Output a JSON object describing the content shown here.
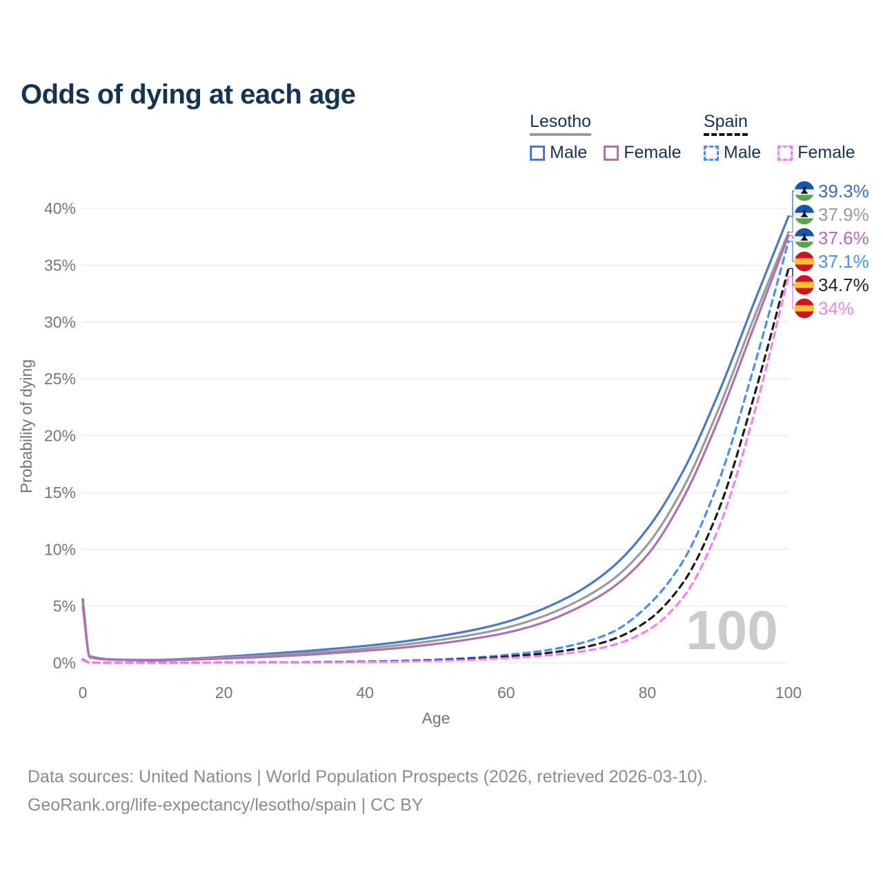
{
  "title": "Odds of dying at each age",
  "watermark": "100",
  "footer": {
    "line1": "Data sources: United Nations | World Population Prospects (2026, retrieved 2026-03-10).",
    "line2": "GeoRank.org/life-expectancy/lesotho/spain | CC BY"
  },
  "legend": {
    "groups": [
      {
        "name": "Lesotho",
        "line_style": "solid",
        "underline_color": "#9a9a9a",
        "items": [
          {
            "label": "Male",
            "color": "#4878c8"
          },
          {
            "label": "Female",
            "color": "#b06fb0"
          }
        ]
      },
      {
        "name": "Spain",
        "line_style": "dashed",
        "underline_color": "#141414",
        "items": [
          {
            "label": "Male",
            "color": "#4a8ff0"
          },
          {
            "label": "Female",
            "color": "#fb7ef5"
          }
        ]
      }
    ]
  },
  "chart_data": {
    "type": "line",
    "title": "Odds of dying at each age",
    "xlabel": "Age",
    "ylabel": "Probability of dying",
    "xlim": [
      0,
      100
    ],
    "ylim": [
      0,
      40
    ],
    "x_ticks": [
      0,
      20,
      40,
      60,
      80,
      100
    ],
    "y_ticks": [
      0,
      5,
      10,
      15,
      20,
      25,
      30,
      35,
      40
    ],
    "y_tick_suffix": "%",
    "grid": "horizontal",
    "legend_position": "top-right",
    "annotation": "100",
    "x": [
      0,
      1,
      5,
      10,
      15,
      20,
      25,
      30,
      35,
      40,
      45,
      50,
      55,
      60,
      65,
      70,
      75,
      80,
      85,
      90,
      95,
      100
    ],
    "series": [
      {
        "name": "Lesotho Male",
        "country": "Lesotho",
        "sex": "Male",
        "flag": "lesotho",
        "color": "#4878c8",
        "label_color": "#3e6ab8",
        "dashed": false,
        "end_label": "39.3%",
        "values": [
          5.6,
          0.6,
          0.3,
          0.27,
          0.37,
          0.55,
          0.75,
          0.97,
          1.22,
          1.5,
          1.85,
          2.3,
          2.85,
          3.6,
          4.7,
          6.2,
          8.4,
          11.8,
          16.8,
          23.6,
          31.5,
          39.3
        ]
      },
      {
        "name": "Lesotho Both sexes",
        "country": "Lesotho",
        "sex": "Both",
        "flag": "lesotho",
        "color": "#9a9a9a",
        "label_color": "#9a9a9a",
        "dashed": false,
        "end_label": "37.9%",
        "values": [
          5.3,
          0.55,
          0.28,
          0.24,
          0.32,
          0.46,
          0.62,
          0.8,
          1.0,
          1.27,
          1.58,
          1.97,
          2.45,
          3.1,
          4.05,
          5.4,
          7.3,
          10.4,
          15.3,
          22.2,
          30.2,
          37.9
        ]
      },
      {
        "name": "Lesotho Female",
        "country": "Lesotho",
        "sex": "Female",
        "flag": "lesotho",
        "color": "#b06fb0",
        "label_color": "#b569ba",
        "dashed": false,
        "end_label": "37.6%",
        "values": [
          5.0,
          0.5,
          0.26,
          0.21,
          0.28,
          0.38,
          0.5,
          0.65,
          0.84,
          1.07,
          1.33,
          1.67,
          2.1,
          2.65,
          3.5,
          4.8,
          6.6,
          9.5,
          14.4,
          21.3,
          29.4,
          37.6
        ]
      },
      {
        "name": "Spain Male",
        "country": "Spain",
        "sex": "Male",
        "flag": "spain",
        "color": "#4a8ff0",
        "label_color": "#4a8ff0",
        "dashed": true,
        "end_label": "37.1%",
        "values": [
          0.3,
          0.03,
          0.01,
          0.01,
          0.02,
          0.04,
          0.05,
          0.06,
          0.09,
          0.13,
          0.19,
          0.29,
          0.45,
          0.7,
          1.05,
          1.65,
          2.7,
          5.0,
          8.9,
          15.8,
          25.8,
          37.1
        ]
      },
      {
        "name": "Spain Both sexes",
        "country": "Spain",
        "sex": "Both",
        "flag": "spain",
        "color": "#1a1a1a",
        "label_color": "#222222",
        "dashed": true,
        "end_label": "34.7%",
        "values": [
          0.27,
          0.025,
          0.01,
          0.01,
          0.015,
          0.03,
          0.04,
          0.05,
          0.07,
          0.1,
          0.15,
          0.23,
          0.36,
          0.55,
          0.82,
          1.25,
          2.05,
          3.7,
          7.0,
          13.3,
          23.2,
          34.7
        ]
      },
      {
        "name": "Spain Female",
        "country": "Spain",
        "sex": "Female",
        "flag": "spain",
        "color": "#fb7ef5",
        "label_color": "#fb7ef5",
        "dashed": true,
        "end_label": "34%",
        "values": [
          0.24,
          0.02,
          0.01,
          0.01,
          0.012,
          0.02,
          0.03,
          0.04,
          0.05,
          0.08,
          0.12,
          0.18,
          0.27,
          0.42,
          0.62,
          0.95,
          1.55,
          2.85,
          5.7,
          11.7,
          21.6,
          34.0
        ]
      }
    ]
  }
}
